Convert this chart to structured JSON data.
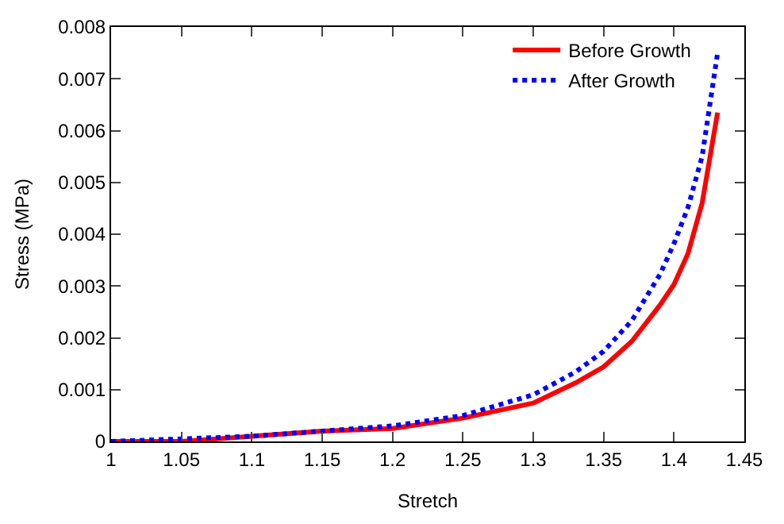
{
  "chart_data": {
    "type": "line",
    "xlabel": "Stretch",
    "ylabel": "Stress (MPa)",
    "xlim": [
      1,
      1.45
    ],
    "xticks": [
      1,
      1.05,
      1.1,
      1.15,
      1.2,
      1.25,
      1.3,
      1.35,
      1.4,
      1.45
    ],
    "ylim": [
      0,
      0.008
    ],
    "yticks": [
      0,
      0.001,
      0.002,
      0.003,
      0.004,
      0.005,
      0.006,
      0.007,
      0.008
    ],
    "legend": "top right",
    "marker": "none",
    "x": [
      1.0,
      1.05,
      1.1,
      1.15,
      1.2,
      1.25,
      1.3,
      1.33,
      1.35,
      1.37,
      1.39,
      1.4,
      1.41,
      1.42,
      1.431
    ],
    "series": [
      {
        "name": "Before Growth",
        "color": "#ff0000",
        "line_style": "solid",
        "values": [
          0,
          0,
          0.0001,
          0.0002,
          0.00025,
          0.00045,
          0.00074,
          0.00113,
          0.00144,
          0.00193,
          0.00263,
          0.00303,
          0.00363,
          0.0046,
          0.00635
        ]
      },
      {
        "name": "After Growth",
        "color": "#0000ff",
        "line_style": "dotted",
        "values": [
          0,
          5e-05,
          0.0001,
          0.0002,
          0.0003,
          0.0005,
          0.0009,
          0.00134,
          0.00174,
          0.00233,
          0.00322,
          0.00382,
          0.00452,
          0.0055,
          0.0075
        ]
      }
    ]
  }
}
